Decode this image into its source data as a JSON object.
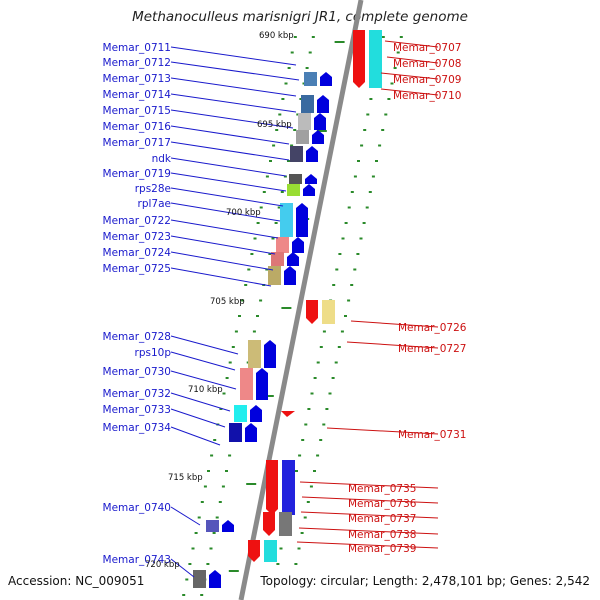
{
  "title": "Methanoculleus marisnigri JR1, complete genome",
  "accession_text": "Accession: NC_009051",
  "topology_text": "Topology: circular; Length: 2,478,101 bp; Genes: 2,542",
  "colors": {
    "left_label": "#1a1acc",
    "right_label": "#cc1111",
    "backbone": "#8a8a8a",
    "tick": "#2a8a2a",
    "forward_arrow": "#0000dd",
    "reverse_arrow": "#ee1111"
  },
  "kbp_markers": [
    "690 kbp",
    "695 kbp",
    "700 kbp",
    "705 kbp",
    "710 kbp",
    "715 kbp",
    "720 kbp"
  ],
  "left_genes": [
    {
      "name": "Memar_0711",
      "color": "#4a7fb5"
    },
    {
      "name": "Memar_0712",
      "color": "#3a6aa0"
    },
    {
      "name": "Memar_0713",
      "color": "#bbbbbb"
    },
    {
      "name": "Memar_0714",
      "color": "#a0a0a0"
    },
    {
      "name": "Memar_0715",
      "color": "#444466"
    },
    {
      "name": "Memar_0716",
      "color": "#555555"
    },
    {
      "name": "Memar_0717",
      "color": "#99dd33"
    },
    {
      "name": "ndk",
      "color": "#44ccee"
    },
    {
      "name": "Memar_0719",
      "color": "#ee8888"
    },
    {
      "name": "rps28e",
      "color": "#dd7777"
    },
    {
      "name": "rpl7ae",
      "color": "#777777"
    },
    {
      "name": "Memar_0722",
      "color": "#666666"
    },
    {
      "name": "Memar_0723",
      "color": "#555555"
    },
    {
      "name": "Memar_0724",
      "color": "#77aa33"
    },
    {
      "name": "Memar_0725",
      "color": "#2222ee"
    },
    {
      "name": "Memar_0728",
      "color": "#bbaa66"
    },
    {
      "name": "rps10p",
      "color": "#ccbb77"
    },
    {
      "name": "Memar_0730",
      "color": "#ee8888"
    },
    {
      "name": "Memar_0732",
      "color": "#22eeee"
    },
    {
      "name": "Memar_0733",
      "color": "#1111aa"
    },
    {
      "name": "Memar_0734",
      "color": "#5555bb"
    },
    {
      "name": "Memar_0740",
      "color": "#666666"
    },
    {
      "name": "Memar_0743",
      "color": "#22ddee"
    }
  ],
  "right_genes": [
    {
      "name": "Memar_0707",
      "color": "#999999"
    },
    {
      "name": "Memar_0708",
      "color": "#ddeeee"
    },
    {
      "name": "Memar_0709",
      "color": "#22dddd"
    },
    {
      "name": "Memar_0710",
      "color": "#22cccc"
    },
    {
      "name": "Memar_0726",
      "color": "#eedd88"
    },
    {
      "name": "Memar_0727",
      "color": "#eeee99"
    },
    {
      "name": "Memar_0731",
      "color": "#ee1111"
    },
    {
      "name": "Memar_0735",
      "color": "#2222dd"
    },
    {
      "name": "Memar_0736",
      "color": "#33bbee"
    },
    {
      "name": "Memar_0737",
      "color": "#777777"
    },
    {
      "name": "Memar_0738",
      "color": "#555555"
    },
    {
      "name": "Memar_0739",
      "color": "#22dddd"
    }
  ]
}
